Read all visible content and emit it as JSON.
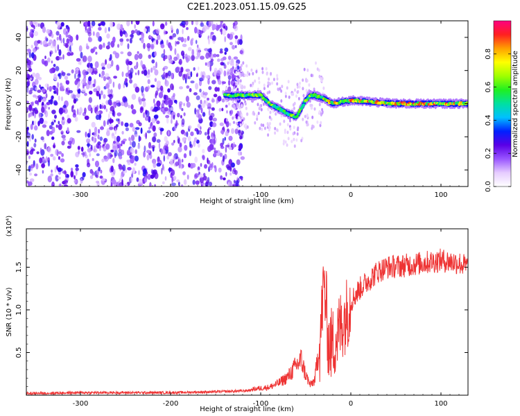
{
  "title": "C2E1.2023.051.15.09.G25",
  "chart_data": [
    {
      "type": "heatmap",
      "xlabel": "Height of straight line (km)",
      "ylabel": "Frequency (Hz)",
      "xlim": [
        -360,
        130
      ],
      "ylim": [
        -50,
        50
      ],
      "xticks": [
        -300,
        -200,
        -100,
        0,
        100
      ],
      "yticks": [
        -40,
        -20,
        0,
        20,
        40
      ],
      "colorbar": {
        "label": "Normalized spectral amplitude",
        "range": [
          0.0,
          1.0
        ],
        "ticks": [
          0.0,
          0.2,
          0.4,
          0.6,
          0.8
        ],
        "tick_labels": [
          "0.0",
          "0.2",
          "0.4",
          "0.6",
          "0.8"
        ],
        "colors": [
          "#ffffff",
          "#e6ccff",
          "#9955ff",
          "#5a00e6",
          "#0020ff",
          "#00c0ff",
          "#00e0a0",
          "#20f020",
          "#a0ff00",
          "#ffff00",
          "#ffa000",
          "#ff2020",
          "#ff0080"
        ]
      },
      "regions": [
        {
          "x": [
            -360,
            -120
          ],
          "description_level": 0.25
        },
        {
          "x": [
            -140,
            130
          ],
          "ridge_freq": 0,
          "level": 0.9
        }
      ],
      "ridge": {
        "x": [
          -140,
          -120,
          -100,
          -90,
          -80,
          -70,
          -60,
          -50,
          -45,
          -40,
          -30,
          -20,
          0,
          50,
          100,
          130
        ],
        "y": [
          5,
          5,
          5,
          0,
          -3,
          -6,
          -8,
          2,
          5,
          5,
          3,
          0,
          2,
          0,
          0,
          0
        ]
      }
    },
    {
      "type": "line",
      "xlabel": "Height of straight line (km)",
      "ylabel": "SNR (10 * v/v)",
      "y_multiplier_label": "(x10⁴)",
      "xlim": [
        -360,
        130
      ],
      "ylim": [
        0,
        1.95
      ],
      "xticks": [
        -300,
        -200,
        -100,
        0,
        100
      ],
      "yticks": [
        0.5,
        1.0,
        1.5
      ],
      "ytick_labels": [
        "0.5",
        "1.0",
        "1.5"
      ],
      "color": "#ee3333",
      "series": [
        {
          "x": [
            -360,
            -300,
            -200,
            -150,
            -120,
            -100,
            -90,
            -80,
            -70,
            -60,
            -55,
            -50,
            -45,
            -40,
            -35,
            -30,
            -27,
            -25,
            -20,
            -15,
            -10,
            -5,
            0,
            10,
            20,
            30,
            40,
            60,
            80,
            100,
            120,
            130
          ],
          "values": [
            0.02,
            0.03,
            0.03,
            0.04,
            0.05,
            0.07,
            0.08,
            0.12,
            0.18,
            0.3,
            0.35,
            0.2,
            0.1,
            0.15,
            0.5,
            1.3,
            1.0,
            0.6,
            0.6,
            0.7,
            0.85,
            0.95,
            1.1,
            1.25,
            1.35,
            1.45,
            1.5,
            1.52,
            1.55,
            1.58,
            1.55,
            1.5
          ]
        }
      ]
    }
  ]
}
